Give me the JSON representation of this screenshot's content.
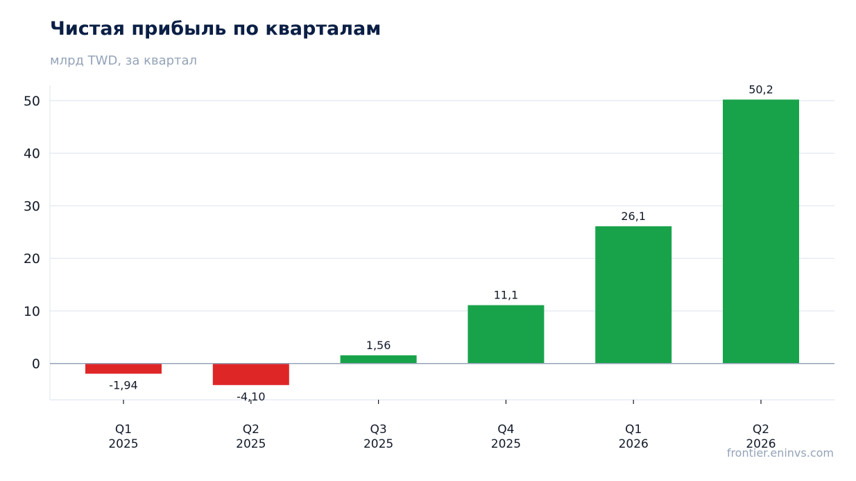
{
  "header": {
    "title": "Чистая прибыль по кварталам",
    "subtitle": "млрд TWD, за квартал"
  },
  "footer": {
    "source": "frontier.eninvs.com"
  },
  "colors": {
    "positive": "#18a34a",
    "negative": "#df2626",
    "grid": "#e2e8f0",
    "zero_line": "#94a3b8",
    "title": "#0b1f45",
    "muted": "#94a3b8",
    "text": "#111827"
  },
  "chart_data": {
    "type": "bar",
    "categories": [
      [
        "Q1",
        "2025"
      ],
      [
        "Q2",
        "2025"
      ],
      [
        "Q3",
        "2025"
      ],
      [
        "Q4",
        "2025"
      ],
      [
        "Q1",
        "2026"
      ],
      [
        "Q2",
        "2026"
      ]
    ],
    "values": [
      -1.94,
      -4.1,
      1.56,
      11.1,
      26.1,
      50.2
    ],
    "value_labels": [
      "-1,94",
      "-4,10",
      "1,56",
      "11,1",
      "26,1",
      "50,2"
    ],
    "yticks": [
      0,
      10,
      20,
      30,
      40,
      50
    ],
    "ylim": [
      -6.9,
      52.9
    ],
    "grid": true,
    "xlabel": "",
    "ylabel": ""
  }
}
